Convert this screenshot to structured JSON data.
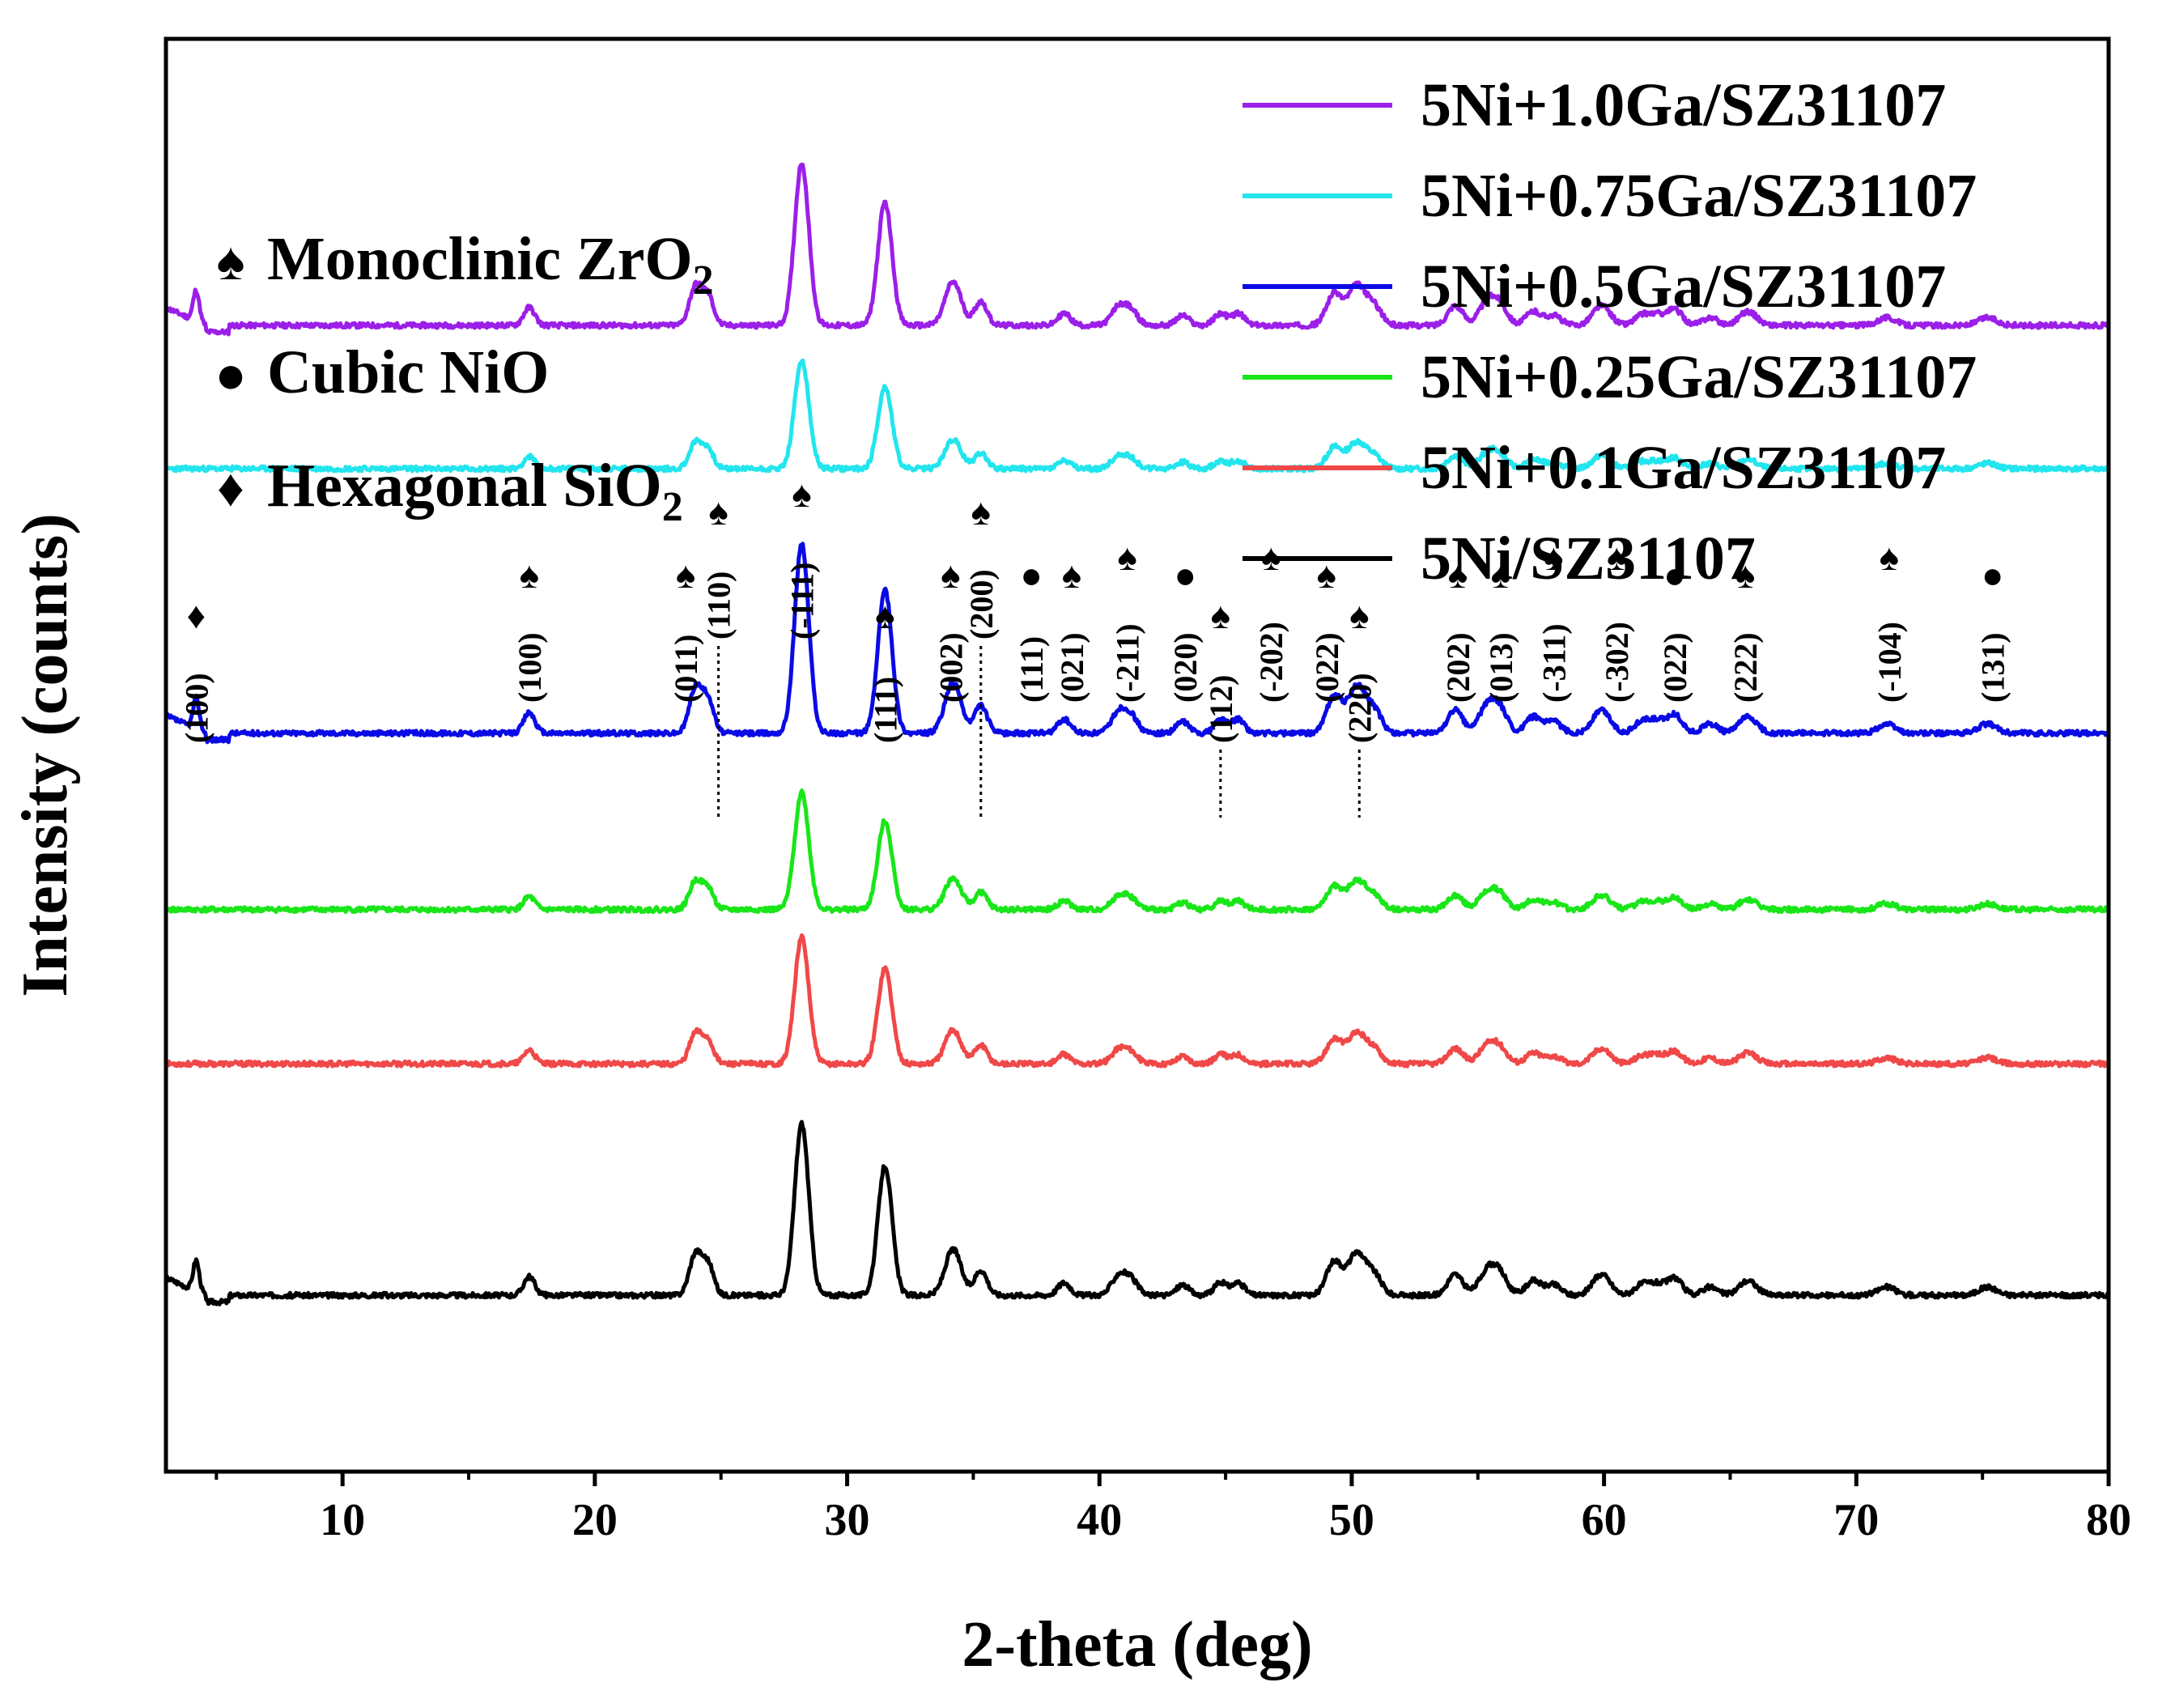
{
  "chart_data": {
    "type": "line",
    "title": "",
    "xlabel": "2-theta (deg)",
    "ylabel": "Intensity (counts)",
    "xlim": [
      3,
      80
    ],
    "xticks": [
      10,
      20,
      30,
      40,
      50,
      60,
      70,
      80
    ],
    "xtick_labels": [
      "10",
      "20",
      "30",
      "40",
      "50",
      "60",
      "70",
      "80"
    ],
    "y_ticks_shown": false,
    "grid": false,
    "legend_position": "top-right",
    "phase_legend": [
      {
        "symbol": "♠",
        "label": "Monoclinic ZrO",
        "subscript": "2"
      },
      {
        "symbol": "●",
        "label": "Cubic NiO",
        "subscript": ""
      },
      {
        "symbol": "♦",
        "label": "Hexagonal SiO",
        "subscript": "2"
      }
    ],
    "series": [
      {
        "name": "5Ni+1.0Ga/SZ31107",
        "color": "#9B1FE8",
        "offset": 5.2,
        "scale": 0.9,
        "noise_seed": 11,
        "low_angle_peak": true
      },
      {
        "name": "5Ni+0.75Ga/SZ31107",
        "color": "#22E5EE",
        "offset": 4.55,
        "scale": 0.6,
        "noise_seed": 23,
        "low_angle_peak": false
      },
      {
        "name": "5Ni+0.5Ga/SZ31107",
        "color": "#0A0AE6",
        "offset": 3.35,
        "scale": 1.05,
        "noise_seed": 37,
        "low_angle_peak": true
      },
      {
        "name": "5Ni+0.25Ga/SZ31107",
        "color": "#19E619",
        "offset": 2.55,
        "scale": 0.65,
        "noise_seed": 41,
        "low_angle_peak": false
      },
      {
        "name": "5Ni+0.1Ga/SZ31107",
        "color": "#F04848",
        "offset": 1.85,
        "scale": 0.7,
        "noise_seed": 53,
        "low_angle_peak": false
      },
      {
        "name": "5Ni/SZ31107",
        "color": "#000000",
        "offset": 0.8,
        "scale": 0.95,
        "noise_seed": 67,
        "low_angle_peak": true
      }
    ],
    "peaks": [
      {
        "pos": 17.4,
        "amp": 0.09,
        "width": 0.22
      },
      {
        "pos": 24.0,
        "amp": 0.2,
        "width": 0.25
      },
      {
        "pos": 24.5,
        "amp": 0.14,
        "width": 0.22
      },
      {
        "pos": 28.2,
        "amp": 0.82,
        "width": 0.28
      },
      {
        "pos": 31.5,
        "amp": 0.62,
        "width": 0.28
      },
      {
        "pos": 34.2,
        "amp": 0.22,
        "width": 0.32
      },
      {
        "pos": 35.3,
        "amp": 0.12,
        "width": 0.25
      },
      {
        "pos": 38.6,
        "amp": 0.06,
        "width": 0.25
      },
      {
        "pos": 40.8,
        "amp": 0.1,
        "width": 0.3
      },
      {
        "pos": 41.3,
        "amp": 0.06,
        "width": 0.25
      },
      {
        "pos": 43.3,
        "amp": 0.05,
        "width": 0.25
      },
      {
        "pos": 44.8,
        "amp": 0.06,
        "width": 0.25
      },
      {
        "pos": 45.5,
        "amp": 0.06,
        "width": 0.25
      },
      {
        "pos": 49.3,
        "amp": 0.16,
        "width": 0.3
      },
      {
        "pos": 50.2,
        "amp": 0.2,
        "width": 0.35
      },
      {
        "pos": 50.9,
        "amp": 0.09,
        "width": 0.3
      },
      {
        "pos": 54.1,
        "amp": 0.1,
        "width": 0.3
      },
      {
        "pos": 55.4,
        "amp": 0.12,
        "width": 0.35
      },
      {
        "pos": 55.9,
        "amp": 0.08,
        "width": 0.3
      },
      {
        "pos": 57.2,
        "amp": 0.07,
        "width": 0.3
      },
      {
        "pos": 58.0,
        "amp": 0.05,
        "width": 0.3
      },
      {
        "pos": 59.9,
        "amp": 0.1,
        "width": 0.35
      },
      {
        "pos": 61.5,
        "amp": 0.05,
        "width": 0.3
      },
      {
        "pos": 62.1,
        "amp": 0.05,
        "width": 0.3
      },
      {
        "pos": 62.8,
        "amp": 0.08,
        "width": 0.3
      },
      {
        "pos": 64.2,
        "amp": 0.04,
        "width": 0.3
      },
      {
        "pos": 65.7,
        "amp": 0.07,
        "width": 0.35
      },
      {
        "pos": 71.2,
        "amp": 0.04,
        "width": 0.35
      },
      {
        "pos": 75.2,
        "amp": 0.04,
        "width": 0.35
      }
    ],
    "annotations": [
      {
        "x": 4.2,
        "hkl": "(100)",
        "symbol": "♦",
        "level": "low",
        "dotted": false
      },
      {
        "x": 17.4,
        "hkl": "(100)",
        "symbol": "♠",
        "level": "mid",
        "dotted": false
      },
      {
        "x": 23.6,
        "hkl": "(011)",
        "symbol": "♠",
        "level": "mid",
        "dotted": false
      },
      {
        "x": 24.9,
        "hkl": "(110)",
        "symbol": "♠",
        "level": "high",
        "dotted": true
      },
      {
        "x": 28.2,
        "hkl": "(-111)",
        "symbol": "♠",
        "level": "high",
        "dotted": false
      },
      {
        "x": 31.5,
        "hkl": "(111)",
        "symbol": "♠",
        "level": "low",
        "dotted": false
      },
      {
        "x": 34.1,
        "hkl": "(002)",
        "symbol": "♠",
        "level": "mid",
        "dotted": false
      },
      {
        "x": 35.3,
        "hkl": "(200)",
        "symbol": "♠",
        "level": "high",
        "dotted": true
      },
      {
        "x": 37.3,
        "hkl": "(111)",
        "symbol": "●",
        "level": "mid",
        "dotted": false
      },
      {
        "x": 38.9,
        "hkl": "(021)",
        "symbol": "♠",
        "level": "mid",
        "dotted": false
      },
      {
        "x": 41.1,
        "hkl": "(-211)",
        "symbol": "♠",
        "level": "mid",
        "dotted": false
      },
      {
        "x": 43.4,
        "hkl": "(020)",
        "symbol": "●",
        "level": "mid",
        "dotted": false
      },
      {
        "x": 44.8,
        "hkl": "(112)",
        "symbol": "♠",
        "level": "low",
        "dotted": true
      },
      {
        "x": 46.8,
        "hkl": "(-202)",
        "symbol": "♠",
        "level": "mid",
        "dotted": false
      },
      {
        "x": 49.0,
        "hkl": "(022)",
        "symbol": "♠",
        "level": "mid",
        "dotted": false
      },
      {
        "x": 50.3,
        "hkl": "(220)",
        "symbol": "♠",
        "level": "low",
        "dotted": true
      },
      {
        "x": 54.2,
        "hkl": "(202)",
        "symbol": "♠",
        "level": "mid",
        "dotted": false
      },
      {
        "x": 55.9,
        "hkl": "(013)",
        "symbol": "♠",
        "level": "mid",
        "dotted": false
      },
      {
        "x": 58.0,
        "hkl": "(-311)",
        "symbol": "♠",
        "level": "mid",
        "dotted": false
      },
      {
        "x": 60.5,
        "hkl": "(-302)",
        "symbol": "♠",
        "level": "mid",
        "dotted": false
      },
      {
        "x": 62.8,
        "hkl": "(022)",
        "symbol": "●",
        "level": "mid",
        "dotted": false
      },
      {
        "x": 65.6,
        "hkl": "(222)",
        "symbol": "♠",
        "level": "mid",
        "dotted": false
      },
      {
        "x": 71.3,
        "hkl": "(-104)",
        "symbol": "♠",
        "level": "mid",
        "dotted": false
      },
      {
        "x": 75.4,
        "hkl": "(131)",
        "symbol": "●",
        "level": "mid",
        "dotted": false
      }
    ]
  }
}
